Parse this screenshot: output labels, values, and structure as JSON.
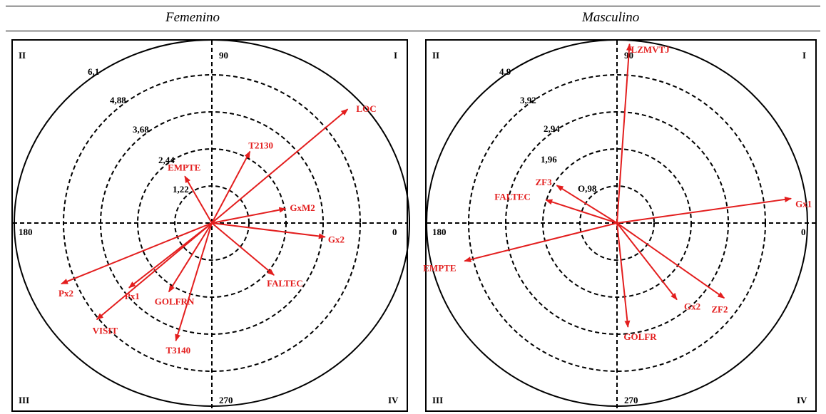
{
  "headers": {
    "left": "Femenino",
    "right": "Masculino"
  },
  "colors": {
    "vector": "#e31e1e",
    "line": "#000000"
  },
  "panels": [
    {
      "id": "femenino",
      "quadrants": {
        "I": "I",
        "II": "II",
        "III": "III",
        "IV": "IV"
      },
      "axis_labels": {
        "top": "90",
        "left": "180",
        "right": "0",
        "bottom": "270"
      },
      "ring_labels": [
        "1,22",
        "2,44",
        "3,68",
        "4,88",
        "6,1"
      ],
      "vectors": [
        {
          "label": "LOC",
          "angle_deg": 40,
          "length": 5.9
        },
        {
          "label": "T2130",
          "angle_deg": 62,
          "length": 2.7
        },
        {
          "label": "EMPTE",
          "angle_deg": 120,
          "length": 1.8
        },
        {
          "label": "GxM2",
          "angle_deg": 11,
          "length": 2.5
        },
        {
          "label": "Gx2",
          "angle_deg": -7,
          "length": 3.8
        },
        {
          "label": "FALTEC",
          "angle_deg": -40,
          "length": 2.7
        },
        {
          "label": "Px2",
          "angle_deg": 202,
          "length": 5.4
        },
        {
          "label": "Px1",
          "angle_deg": 218,
          "length": 3.5
        },
        {
          "label": "GOLFRN",
          "angle_deg": 238,
          "length": 2.7
        },
        {
          "label": "VISIT",
          "angle_deg": 220,
          "length": 5.0
        },
        {
          "label": "T3140",
          "angle_deg": 253,
          "length": 4.1
        }
      ]
    },
    {
      "id": "masculino",
      "quadrants": {
        "I": "I",
        "II": "II",
        "III": "III",
        "IV": "IV"
      },
      "axis_labels": {
        "top": "90",
        "left": "180",
        "right": "0",
        "bottom": "270"
      },
      "ring_labels": [
        "O,98",
        "1,96",
        "2,94",
        "3,92",
        "4,9"
      ],
      "vectors": [
        {
          "label": "LZMVTJ",
          "angle_deg": 86,
          "length": 4.8
        },
        {
          "label": "Gx1",
          "angle_deg": 8,
          "length": 4.7
        },
        {
          "label": "ZF3",
          "angle_deg": 148,
          "length": 1.9
        },
        {
          "label": "FALTEC",
          "angle_deg": 162,
          "length": 2.0
        },
        {
          "label": "EMPTE",
          "angle_deg": 194,
          "length": 4.2
        },
        {
          "label": "GOLFR",
          "angle_deg": -84,
          "length": 2.8
        },
        {
          "label": "Gx2",
          "angle_deg": -52,
          "length": 2.6
        },
        {
          "label": "ZF2",
          "angle_deg": -35,
          "length": 3.5
        }
      ]
    }
  ]
}
